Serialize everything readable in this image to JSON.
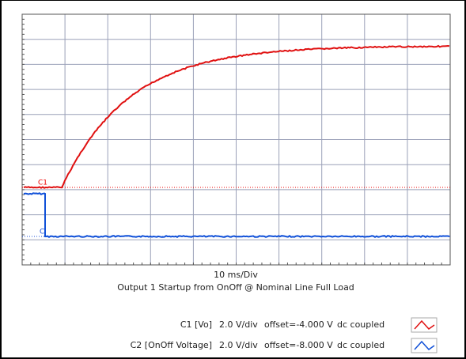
{
  "screen": {
    "markers": {
      "c1": "C1",
      "c2": "C"
    },
    "timebase": "10 ms/Div",
    "title": "Output 1 Startup from OnOff @ Nominal Line Full Load",
    "channels": [
      {
        "name": "C1 [Vo]",
        "scale": "2.0 V/div",
        "offset": "offset=-4.000 V",
        "coupling": "dc coupled"
      },
      {
        "name": "C2 [OnOff Voltage]",
        "scale": "2.0 V/div",
        "offset": "offset=-8.000 V",
        "coupling": "dc coupled"
      }
    ]
  }
}
